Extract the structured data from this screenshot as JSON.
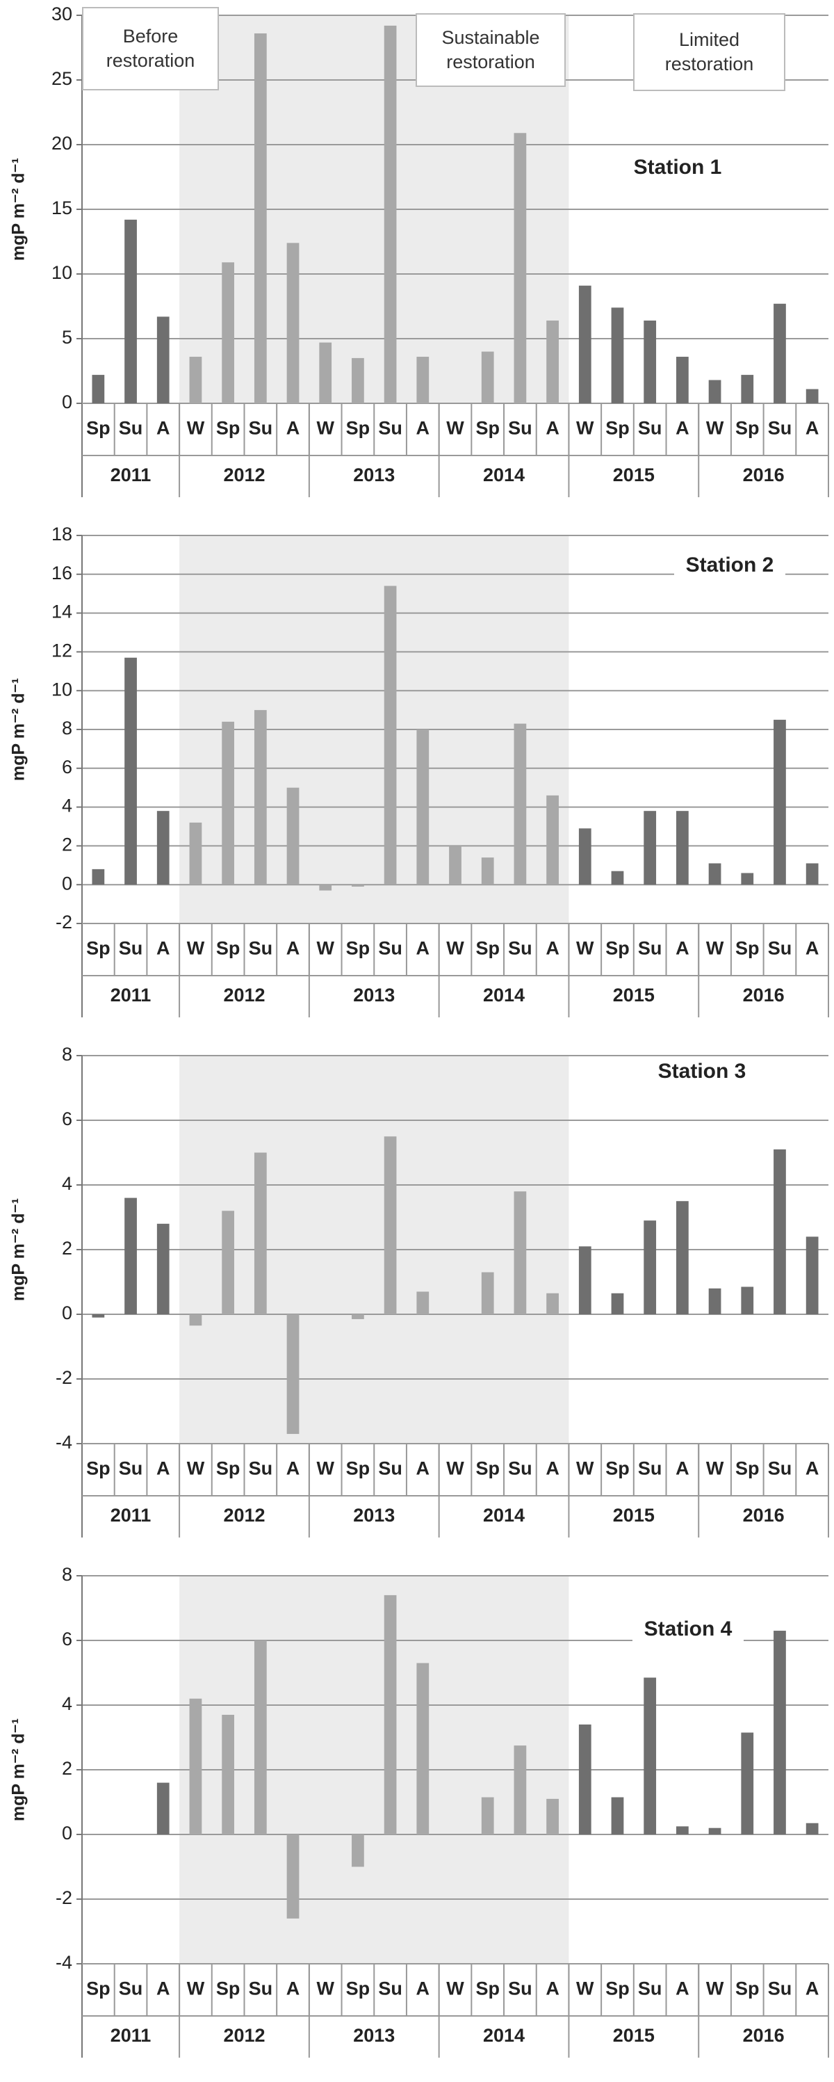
{
  "chart_data": [
    {
      "type": "bar",
      "title": "Station 1",
      "ylabel": "mgP m⁻² d⁻¹",
      "ylim": [
        0,
        30
      ],
      "yticks": [
        0,
        5,
        10,
        15,
        20,
        25,
        30
      ],
      "grid": true,
      "annotations": [
        "Before restoration",
        "Sustainable restoration",
        "Limited restoration"
      ],
      "groups": [
        {
          "label": "2011",
          "categories": [
            "Sp",
            "Su",
            "A"
          ],
          "color": "#6f6f6f",
          "shaded": false
        },
        {
          "label": "2012",
          "categories": [
            "W",
            "Sp",
            "Su",
            "A"
          ],
          "color": "#a8a8a8",
          "shaded": true
        },
        {
          "label": "2013",
          "categories": [
            "W",
            "Sp",
            "Su",
            "A"
          ],
          "color": "#a8a8a8",
          "shaded": true
        },
        {
          "label": "2014",
          "categories": [
            "W",
            "Sp",
            "Su",
            "A"
          ],
          "color": "#a8a8a8",
          "shaded": true
        },
        {
          "label": "2015",
          "categories": [
            "W",
            "Sp",
            "Su",
            "A"
          ],
          "color": "#6f6f6f",
          "shaded": false
        },
        {
          "label": "2016",
          "categories": [
            "W",
            "Sp",
            "Su",
            "A"
          ],
          "color": "#6f6f6f",
          "shaded": false
        }
      ],
      "values": [
        2.2,
        14.2,
        6.7,
        3.6,
        10.9,
        28.6,
        12.4,
        4.7,
        3.5,
        29.2,
        3.6,
        null,
        4.0,
        20.9,
        6.4,
        9.1,
        7.4,
        6.4,
        3.6,
        1.8,
        2.2,
        7.7,
        1.1
      ]
    },
    {
      "type": "bar",
      "title": "Station 2",
      "ylabel": "mgP m⁻² d⁻¹",
      "ylim": [
        -2,
        18
      ],
      "yticks": [
        -2,
        0,
        2,
        4,
        6,
        8,
        10,
        12,
        14,
        16,
        18
      ],
      "grid": true,
      "groups": [
        {
          "label": "2011",
          "categories": [
            "Sp",
            "Su",
            "A"
          ],
          "color": "#6f6f6f",
          "shaded": false
        },
        {
          "label": "2012",
          "categories": [
            "W",
            "Sp",
            "Su",
            "A"
          ],
          "color": "#a8a8a8",
          "shaded": true
        },
        {
          "label": "2013",
          "categories": [
            "W",
            "Sp",
            "Su",
            "A"
          ],
          "color": "#a8a8a8",
          "shaded": true
        },
        {
          "label": "2014",
          "categories": [
            "W",
            "Sp",
            "Su",
            "A"
          ],
          "color": "#a8a8a8",
          "shaded": true
        },
        {
          "label": "2015",
          "categories": [
            "W",
            "Sp",
            "Su",
            "A"
          ],
          "color": "#6f6f6f",
          "shaded": false
        },
        {
          "label": "2016",
          "categories": [
            "W",
            "Sp",
            "Su",
            "A"
          ],
          "color": "#6f6f6f",
          "shaded": false
        }
      ],
      "values": [
        0.8,
        11.7,
        3.8,
        3.2,
        8.4,
        9.0,
        5.0,
        -0.3,
        -0.1,
        15.4,
        8.0,
        2.0,
        1.4,
        8.3,
        4.6,
        2.9,
        0.7,
        3.8,
        3.8,
        1.1,
        0.6,
        8.5,
        1.1
      ]
    },
    {
      "type": "bar",
      "title": "Station 3",
      "ylabel": "mgP m⁻² d⁻¹",
      "ylim": [
        -4,
        8
      ],
      "yticks": [
        -4,
        -2,
        0,
        2,
        4,
        6,
        8
      ],
      "grid": true,
      "groups": [
        {
          "label": "2011",
          "categories": [
            "Sp",
            "Su",
            "A"
          ],
          "color": "#6f6f6f",
          "shaded": false
        },
        {
          "label": "2012",
          "categories": [
            "W",
            "Sp",
            "Su",
            "A"
          ],
          "color": "#a8a8a8",
          "shaded": true
        },
        {
          "label": "2013",
          "categories": [
            "W",
            "Sp",
            "Su",
            "A"
          ],
          "color": "#a8a8a8",
          "shaded": true
        },
        {
          "label": "2014",
          "categories": [
            "W",
            "Sp",
            "Su",
            "A"
          ],
          "color": "#a8a8a8",
          "shaded": true
        },
        {
          "label": "2015",
          "categories": [
            "W",
            "Sp",
            "Su",
            "A"
          ],
          "color": "#6f6f6f",
          "shaded": false
        },
        {
          "label": "2016",
          "categories": [
            "W",
            "Sp",
            "Su",
            "A"
          ],
          "color": "#6f6f6f",
          "shaded": false
        }
      ],
      "values": [
        -0.1,
        3.6,
        2.8,
        -0.35,
        3.2,
        5.0,
        -3.7,
        null,
        -0.15,
        5.5,
        0.7,
        null,
        1.3,
        3.8,
        0.65,
        2.1,
        0.65,
        2.9,
        3.5,
        0.8,
        0.85,
        5.1,
        2.4
      ]
    },
    {
      "type": "bar",
      "title": "Station 4",
      "ylabel": "mgP m⁻² d⁻¹",
      "ylim": [
        -4,
        8
      ],
      "yticks": [
        -4,
        -2,
        0,
        2,
        4,
        6,
        8
      ],
      "grid": true,
      "groups": [
        {
          "label": "2011",
          "categories": [
            "Sp",
            "Su",
            "A"
          ],
          "color": "#6f6f6f",
          "shaded": false
        },
        {
          "label": "2012",
          "categories": [
            "W",
            "Sp",
            "Su",
            "A"
          ],
          "color": "#a8a8a8",
          "shaded": true
        },
        {
          "label": "2013",
          "categories": [
            "W",
            "Sp",
            "Su",
            "A"
          ],
          "color": "#a8a8a8",
          "shaded": true
        },
        {
          "label": "2014",
          "categories": [
            "W",
            "Sp",
            "Su",
            "A"
          ],
          "color": "#a8a8a8",
          "shaded": true
        },
        {
          "label": "2015",
          "categories": [
            "W",
            "Sp",
            "Su",
            "A"
          ],
          "color": "#6f6f6f",
          "shaded": false
        },
        {
          "label": "2016",
          "categories": [
            "W",
            "Sp",
            "Su",
            "A"
          ],
          "color": "#6f6f6f",
          "shaded": false
        }
      ],
      "values": [
        null,
        null,
        1.6,
        4.2,
        3.7,
        6.0,
        -2.6,
        null,
        -1.0,
        7.4,
        5.3,
        null,
        1.15,
        2.75,
        1.1,
        3.4,
        1.15,
        4.85,
        0.25,
        0.2,
        3.15,
        6.3,
        0.35
      ]
    }
  ]
}
